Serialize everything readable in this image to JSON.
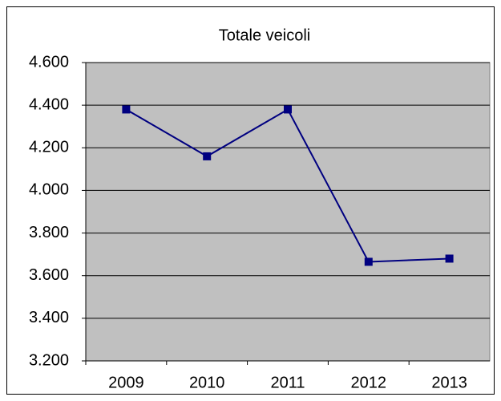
{
  "chart_data": {
    "type": "line",
    "title": "Totale veicoli",
    "categories": [
      "2009",
      "2010",
      "2011",
      "2012",
      "2013"
    ],
    "series": [
      {
        "name": "Totale veicoli",
        "color": "#000080",
        "values": [
          4380,
          4160,
          4380,
          3665,
          3680
        ]
      }
    ],
    "ylim": [
      3200,
      4600
    ],
    "yticks": [
      {
        "value": 3200,
        "label": "3.200"
      },
      {
        "value": 3400,
        "label": "3.400"
      },
      {
        "value": 3600,
        "label": "3.600"
      },
      {
        "value": 3800,
        "label": "3.800"
      },
      {
        "value": 4000,
        "label": "4.000"
      },
      {
        "value": 4200,
        "label": "4.200"
      },
      {
        "value": 4400,
        "label": "4.400"
      },
      {
        "value": 4600,
        "label": "4.600"
      }
    ],
    "grid": true,
    "plot_background": "#c0c0c0"
  }
}
